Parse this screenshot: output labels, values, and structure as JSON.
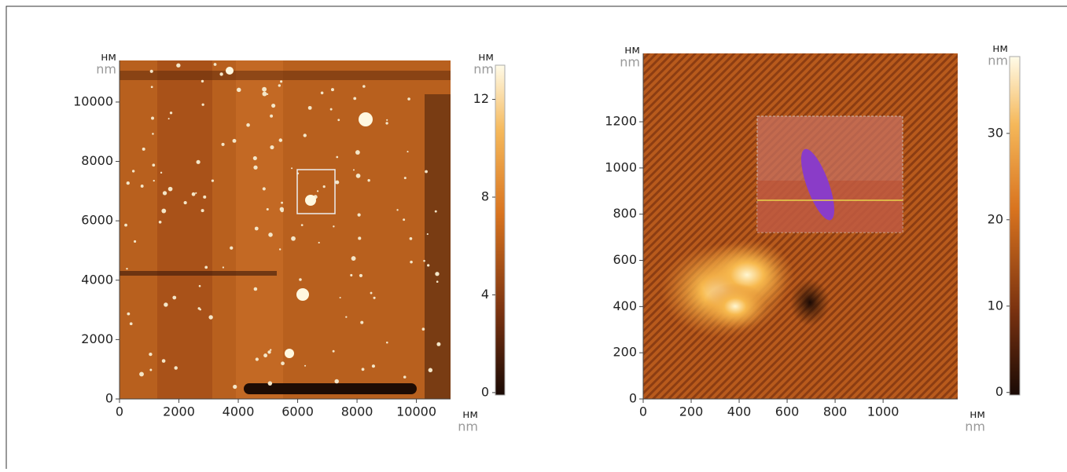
{
  "chart_data": [
    {
      "type": "image",
      "unit_ru": "нм",
      "unit_en": "nm",
      "xlim": [
        0,
        11150
      ],
      "xticks": [
        0,
        2000,
        4000,
        6000,
        8000,
        10000
      ],
      "ylim": [
        0,
        11400
      ],
      "yticks": [
        0,
        2000,
        4000,
        6000,
        8000,
        10000
      ],
      "clim": [
        -0.1,
        13.4
      ],
      "cticks": [
        0,
        4,
        8,
        12
      ]
    },
    {
      "type": "image",
      "unit_ru": "нм",
      "unit_en": "nm",
      "xlim": [
        0,
        1311
      ],
      "xticks": [
        0,
        200,
        400,
        600,
        800,
        1000
      ],
      "ylim": [
        0,
        1496
      ],
      "yticks": [
        0,
        200,
        400,
        600,
        800,
        1000,
        1200
      ],
      "clim": [
        -0.3,
        38.9
      ],
      "cticks": [
        0,
        10,
        20,
        30
      ]
    }
  ]
}
